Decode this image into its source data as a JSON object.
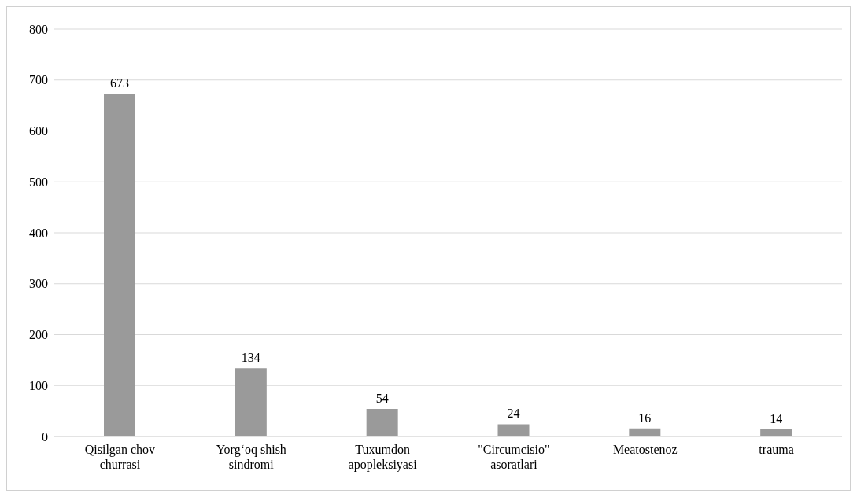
{
  "chart_data": {
    "type": "bar",
    "categories": [
      "Qisilgan chov churrasi",
      "Yorg‘oq shish sindromi",
      "Tuxumdon apopleksiyasi",
      "\"Circumcisio\" asoratlari",
      "Meatostenoz",
      "trauma"
    ],
    "values": [
      673,
      134,
      54,
      24,
      16,
      14
    ],
    "color": "#9a9a9a",
    "ylim": [
      0,
      800
    ],
    "yticks": [
      0,
      100,
      200,
      300,
      400,
      500,
      600,
      700,
      800
    ],
    "grid": "y",
    "data_labels": true
  }
}
